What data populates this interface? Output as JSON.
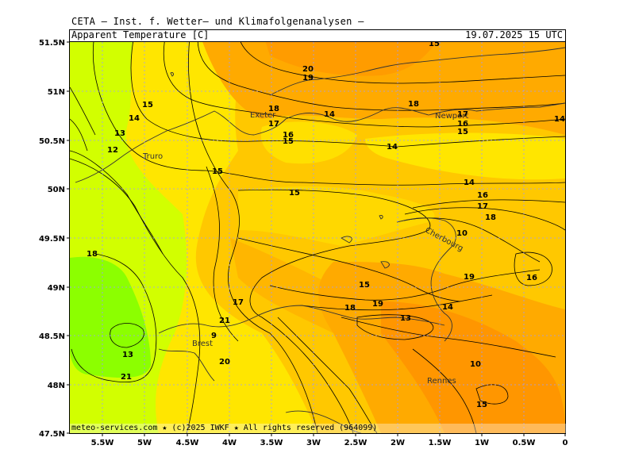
{
  "header": {
    "title": "CETA — Inst. f. Wetter— und Klimafolgenanalysen —",
    "parameter": "Apparent Temperature [C]",
    "valid_time": "19.07.2025 15 UTC"
  },
  "footer": {
    "credit": "meteo-services.com ★ (c)2025 IWKF ★ All rights reserved (964099)"
  },
  "axes": {
    "lat_labels": [
      "51.5N",
      "51N",
      "50.5N",
      "50N",
      "49.5N",
      "49N",
      "48.5N",
      "48N",
      "47.5N"
    ],
    "lon_labels": [
      "5.5W",
      "5W",
      "4.5W",
      "4W",
      "3.5W",
      "3W",
      "2.5W",
      "2W",
      "1.5W",
      "1W",
      "0.5W",
      "0"
    ]
  },
  "cities": [
    "Truro",
    "Exeter",
    "Newport",
    "Cherbourg",
    "Brest",
    "Rennes"
  ],
  "contour_labels": [
    "20",
    "19",
    "15",
    "18",
    "15",
    "14",
    "18",
    "17",
    "14",
    "17",
    "16",
    "15",
    "16",
    "15",
    "13",
    "12",
    "14",
    "14",
    "15",
    "14",
    "15",
    "16",
    "17",
    "18",
    "10",
    "18",
    "19",
    "16",
    "15",
    "17",
    "18",
    "19",
    "14",
    "21",
    "13",
    "9",
    "13",
    "20",
    "10",
    "21",
    "15"
  ],
  "colors": {
    "lime": "#8cff00",
    "yellow_green": "#d2ff00",
    "yellow": "#ffe600",
    "light_orange": "#ffc800",
    "orange": "#ffaa00",
    "deep_orange": "#ff9600"
  }
}
